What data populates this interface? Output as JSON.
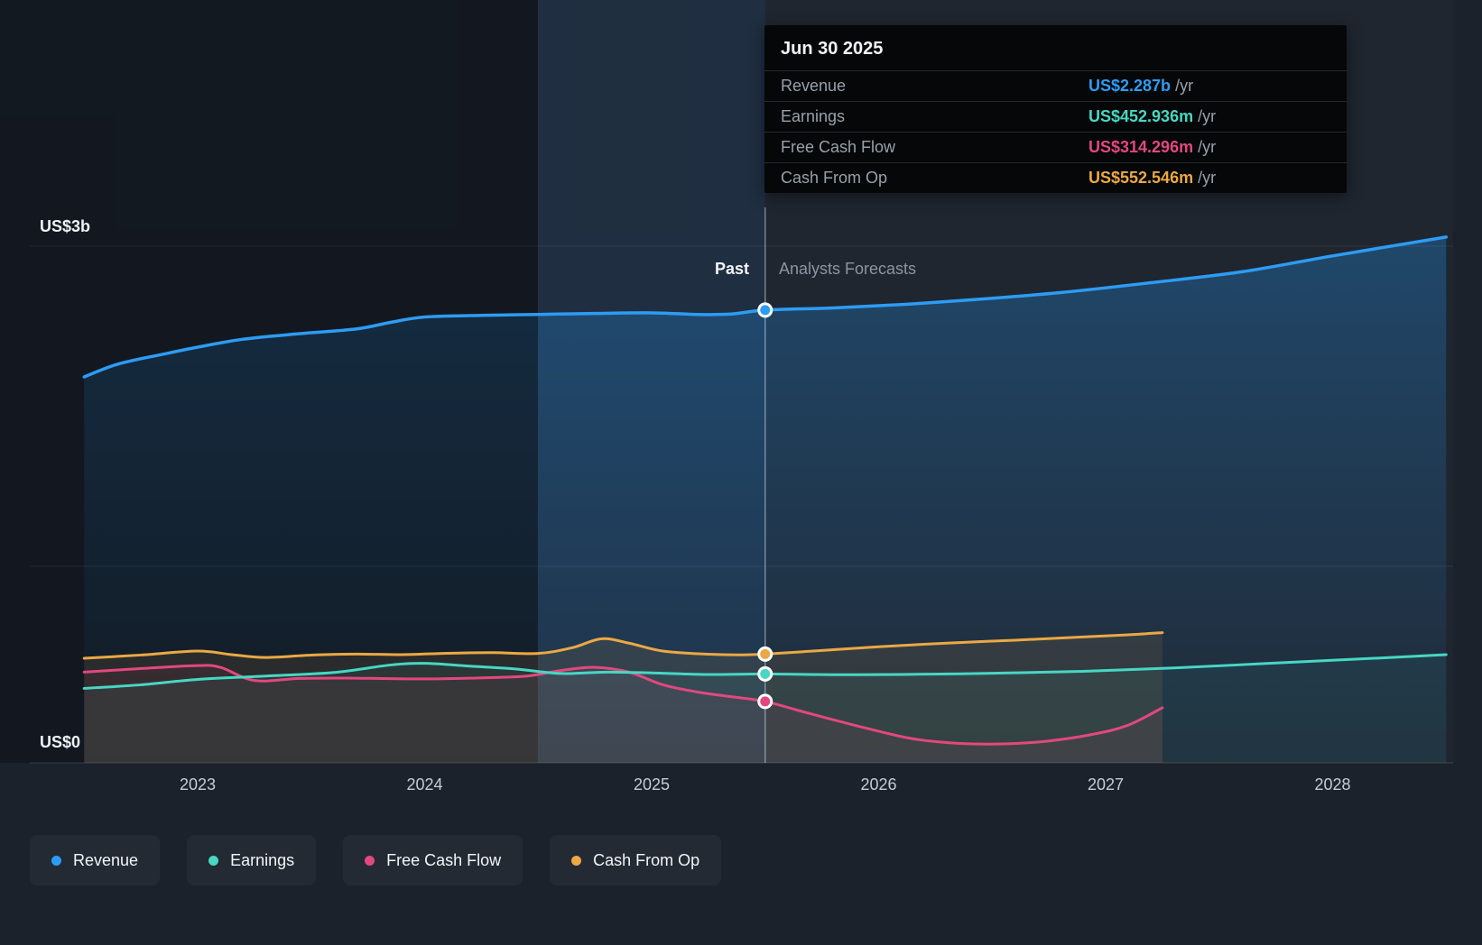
{
  "axes": {
    "y_top": "US$3b",
    "y_bottom": "US$0"
  },
  "tooltip": {
    "title": "Jun 30 2025",
    "rows": [
      {
        "label": "Revenue",
        "value": "US$2.287b",
        "unit": " /yr",
        "color": "#2d9cf4"
      },
      {
        "label": "Earnings",
        "value": "US$452.936m",
        "unit": " /yr",
        "color": "#47d7c4"
      },
      {
        "label": "Free Cash Flow",
        "value": "US$314.296m",
        "unit": " /yr",
        "color": "#e2487e"
      },
      {
        "label": "Cash From Op",
        "value": "US$552.546m",
        "unit": " /yr",
        "color": "#eba844"
      }
    ]
  },
  "legend": {
    "items": [
      {
        "label": "Revenue",
        "color": "#2d9cf4"
      },
      {
        "label": "Earnings",
        "color": "#47d7c4"
      },
      {
        "label": "Free Cash Flow",
        "color": "#e2487e"
      },
      {
        "label": "Cash From Op",
        "color": "#eba844"
      }
    ]
  },
  "chart_data": {
    "type": "line",
    "title": "",
    "unit": "US$ millions per year",
    "x_ticks": [
      2023,
      2024,
      2025,
      2026,
      2027,
      2028
    ],
    "y_axis": {
      "min": 0,
      "max": 3000,
      "labels": [
        "US$0",
        "US$3b"
      ]
    },
    "divider": {
      "x": 2025.5,
      "date": "Jun 30 2025",
      "past_label": "Past",
      "forecast_label": "Analysts Forecasts"
    },
    "highlight_band": [
      2024.5,
      2025.5
    ],
    "series": [
      {
        "name": "Revenue",
        "color": "#2d9cf4",
        "fill": "url(#gRev)",
        "value_at_divider": 2287,
        "points": [
          [
            2022.5,
            1950
          ],
          [
            2022.65,
            2015
          ],
          [
            2022.85,
            2065
          ],
          [
            2023.0,
            2100
          ],
          [
            2023.2,
            2140
          ],
          [
            2023.45,
            2168
          ],
          [
            2023.7,
            2192
          ],
          [
            2023.85,
            2225
          ],
          [
            2024.0,
            2252
          ],
          [
            2024.25,
            2260
          ],
          [
            2024.5,
            2265
          ],
          [
            2024.75,
            2270
          ],
          [
            2025.0,
            2273
          ],
          [
            2025.2,
            2265
          ],
          [
            2025.35,
            2267
          ],
          [
            2025.5,
            2287
          ],
          [
            2025.8,
            2298
          ],
          [
            2026.1,
            2315
          ],
          [
            2026.4,
            2338
          ],
          [
            2026.8,
            2375
          ],
          [
            2027.2,
            2425
          ],
          [
            2027.6,
            2480
          ],
          [
            2028.0,
            2560
          ],
          [
            2028.5,
            2655
          ]
        ]
      },
      {
        "name": "Earnings",
        "color": "#47d7c4",
        "fill": "rgba(71,215,196,0.07)",
        "value_at_divider": 452.936,
        "points": [
          [
            2022.5,
            380
          ],
          [
            2022.75,
            398
          ],
          [
            2023.0,
            425
          ],
          [
            2023.3,
            442
          ],
          [
            2023.6,
            460
          ],
          [
            2023.85,
            498
          ],
          [
            2024.0,
            506
          ],
          [
            2024.2,
            492
          ],
          [
            2024.4,
            478
          ],
          [
            2024.6,
            455
          ],
          [
            2024.8,
            462
          ],
          [
            2025.0,
            458
          ],
          [
            2025.25,
            450
          ],
          [
            2025.5,
            453
          ],
          [
            2025.8,
            449
          ],
          [
            2026.1,
            450
          ],
          [
            2026.5,
            456
          ],
          [
            2026.9,
            466
          ],
          [
            2027.3,
            483
          ],
          [
            2027.7,
            505
          ],
          [
            2028.1,
            527
          ],
          [
            2028.5,
            550
          ]
        ]
      },
      {
        "name": "Free Cash Flow",
        "color": "#e2487e",
        "fill": "rgba(226,72,126,0.07)",
        "value_at_divider": 314.296,
        "points": [
          [
            2022.5,
            462
          ],
          [
            2022.75,
            480
          ],
          [
            2023.0,
            495
          ],
          [
            2023.1,
            486
          ],
          [
            2023.25,
            420
          ],
          [
            2023.45,
            430
          ],
          [
            2023.65,
            432
          ],
          [
            2023.85,
            429
          ],
          [
            2024.05,
            428
          ],
          [
            2024.25,
            433
          ],
          [
            2024.45,
            442
          ],
          [
            2024.6,
            470
          ],
          [
            2024.75,
            486
          ],
          [
            2024.9,
            462
          ],
          [
            2025.05,
            398
          ],
          [
            2025.2,
            362
          ],
          [
            2025.35,
            338
          ],
          [
            2025.5,
            314
          ],
          [
            2025.7,
            252
          ],
          [
            2025.95,
            178
          ],
          [
            2026.15,
            126
          ],
          [
            2026.35,
            103
          ],
          [
            2026.55,
            100
          ],
          [
            2026.75,
            115
          ],
          [
            2026.95,
            150
          ],
          [
            2027.1,
            195
          ],
          [
            2027.25,
            282
          ]
        ]
      },
      {
        "name": "Cash From Op",
        "color": "#eba844",
        "fill": "rgba(235,168,68,0.10)",
        "value_at_divider": 552.546,
        "points": [
          [
            2022.5,
            532
          ],
          [
            2022.75,
            548
          ],
          [
            2023.0,
            568
          ],
          [
            2023.15,
            550
          ],
          [
            2023.3,
            536
          ],
          [
            2023.5,
            548
          ],
          [
            2023.7,
            553
          ],
          [
            2023.9,
            550
          ],
          [
            2024.1,
            557
          ],
          [
            2024.3,
            560
          ],
          [
            2024.5,
            556
          ],
          [
            2024.65,
            585
          ],
          [
            2024.78,
            630
          ],
          [
            2024.9,
            608
          ],
          [
            2025.05,
            568
          ],
          [
            2025.25,
            552
          ],
          [
            2025.4,
            549
          ],
          [
            2025.5,
            553
          ],
          [
            2025.75,
            571
          ],
          [
            2026.0,
            590
          ],
          [
            2026.3,
            608
          ],
          [
            2026.6,
            623
          ],
          [
            2026.9,
            639
          ],
          [
            2027.1,
            650
          ],
          [
            2027.25,
            661
          ]
        ]
      }
    ]
  }
}
